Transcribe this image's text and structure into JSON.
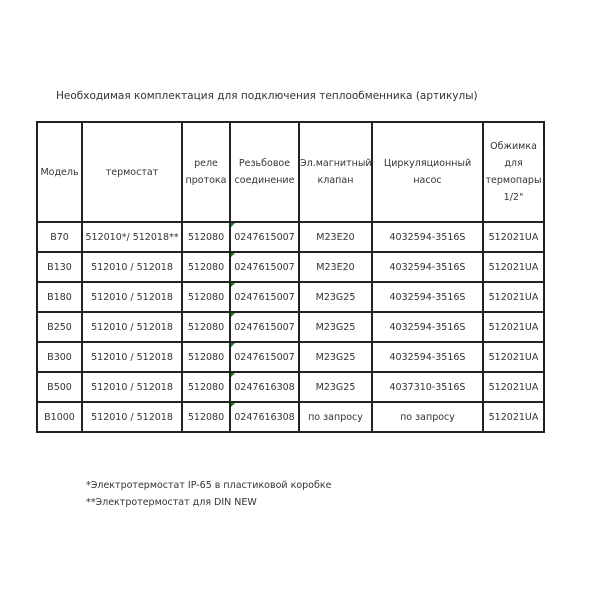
{
  "title": "Необходимая комплектация для подключения теплообменника (артикулы)",
  "table": {
    "headers": [
      "Модель",
      "термостат",
      "реле протока",
      "Резьбовое соединение",
      "Эл.магнитный клапан",
      "Циркуляционный насос",
      "Обжимка для термопары 1/2\""
    ],
    "rows": [
      [
        "B70",
        "512010*/ 512018**",
        "512080",
        "0247615007",
        "M23E20",
        "4032594-3516S",
        "512021UA"
      ],
      [
        "B130",
        "512010 / 512018",
        "512080",
        "0247615007",
        "M23E20",
        "4032594-3516S",
        "512021UA"
      ],
      [
        "B180",
        "512010 / 512018",
        "512080",
        "0247615007",
        "M23G25",
        "4032594-3516S",
        "512021UA"
      ],
      [
        "B250",
        "512010 / 512018",
        "512080",
        "0247615007",
        "M23G25",
        "4032594-3516S",
        "512021UA"
      ],
      [
        "B300",
        "512010 / 512018",
        "512080",
        "0247615007",
        "M23G25",
        "4032594-3516S",
        "512021UA"
      ],
      [
        "B500",
        "512010 / 512018",
        "512080",
        "0247616308",
        "M23G25",
        "4037310-3516S",
        "512021UA"
      ],
      [
        "B1000",
        "512010 / 512018",
        "512080",
        "0247616308",
        "по запросу",
        "по запросу",
        "512021UA"
      ]
    ]
  },
  "footnotes": [
    "*Электротермостат IP-65 в пластиковой коробке",
    "**Электротермостат для DIN NEW"
  ],
  "colors": {
    "border": "#222222",
    "cell_marker": "#1a7a1a"
  }
}
